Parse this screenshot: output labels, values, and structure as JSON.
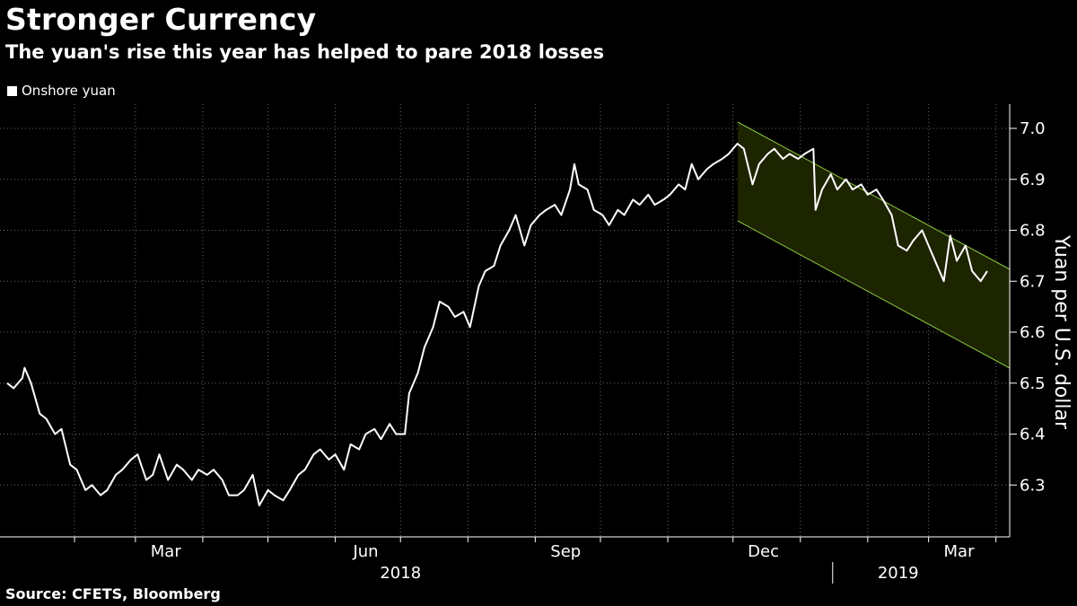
{
  "header": {
    "title": "Stronger Currency",
    "subtitle": "The yuan's rise this year has helped to pare 2018 losses"
  },
  "legend": {
    "label": "Onshore yuan"
  },
  "footer": {
    "source": "Source: CFETS, Bloomberg"
  },
  "colors": {
    "background": "#000000",
    "line": "#ffffff",
    "channel_fill": "#1c2400",
    "channel_edge": "#8cc63f",
    "grid": "#666666"
  },
  "chart_data": {
    "type": "line",
    "title": "Stronger Currency",
    "subtitle": "The yuan's rise this year has helped to pare 2018 losses",
    "ylabel": "Yuan per U.S. dollar",
    "xlabel": "",
    "ylim": [
      6.2,
      7.05
    ],
    "yticks": [
      6.3,
      6.4,
      6.5,
      6.6,
      6.7,
      6.8,
      6.9,
      7.0
    ],
    "ytick_labels": [
      "6.3",
      "6.4",
      "6.5",
      "6.6",
      "6.7",
      "6.8",
      "6.9",
      "7.0"
    ],
    "xlim": [
      "2018-01-01",
      "2019-03-28"
    ],
    "x_month_ticks": [
      "2018-02-01",
      "2018-03-01",
      "2018-04-01",
      "2018-05-01",
      "2018-06-01",
      "2018-07-01",
      "2018-08-01",
      "2018-09-01",
      "2018-10-01",
      "2018-11-01",
      "2018-12-01",
      "2019-01-01",
      "2019-02-01",
      "2019-03-01",
      "2019-04-01"
    ],
    "x_labels": [
      {
        "date": "2018-03-15",
        "label": "Mar"
      },
      {
        "date": "2018-06-15",
        "label": "Jun"
      },
      {
        "date": "2018-09-15",
        "label": "Sep"
      },
      {
        "date": "2018-12-15",
        "label": "Dec"
      },
      {
        "date": "2019-03-15",
        "label": "Mar"
      }
    ],
    "year_labels": [
      {
        "date": "2018-07-01",
        "label": "2018"
      },
      {
        "date": "2019-02-15",
        "label": "2019"
      }
    ],
    "year_divider": "2019-01-01",
    "grid": true,
    "legend": "top-left",
    "series": [
      {
        "name": "Onshore yuan",
        "points": [
          [
            "2018-01-01",
            6.5
          ],
          [
            "2018-01-04",
            6.49
          ],
          [
            "2018-01-08",
            6.51
          ],
          [
            "2018-01-09",
            6.53
          ],
          [
            "2018-01-12",
            6.5
          ],
          [
            "2018-01-16",
            6.44
          ],
          [
            "2018-01-19",
            6.43
          ],
          [
            "2018-01-23",
            6.4
          ],
          [
            "2018-01-26",
            6.41
          ],
          [
            "2018-01-30",
            6.34
          ],
          [
            "2018-02-02",
            6.33
          ],
          [
            "2018-02-06",
            6.29
          ],
          [
            "2018-02-09",
            6.3
          ],
          [
            "2018-02-13",
            6.28
          ],
          [
            "2018-02-16",
            6.29
          ],
          [
            "2018-02-20",
            6.32
          ],
          [
            "2018-02-23",
            6.33
          ],
          [
            "2018-02-27",
            6.35
          ],
          [
            "2018-03-02",
            6.36
          ],
          [
            "2018-03-06",
            6.31
          ],
          [
            "2018-03-09",
            6.32
          ],
          [
            "2018-03-12",
            6.36
          ],
          [
            "2018-03-16",
            6.31
          ],
          [
            "2018-03-20",
            6.34
          ],
          [
            "2018-03-23",
            6.33
          ],
          [
            "2018-03-27",
            6.31
          ],
          [
            "2018-03-30",
            6.33
          ],
          [
            "2018-04-03",
            6.32
          ],
          [
            "2018-04-06",
            6.33
          ],
          [
            "2018-04-10",
            6.31
          ],
          [
            "2018-04-13",
            6.28
          ],
          [
            "2018-04-17",
            6.28
          ],
          [
            "2018-04-20",
            6.29
          ],
          [
            "2018-04-24",
            6.32
          ],
          [
            "2018-04-27",
            6.26
          ],
          [
            "2018-05-01",
            6.29
          ],
          [
            "2018-05-04",
            6.28
          ],
          [
            "2018-05-08",
            6.27
          ],
          [
            "2018-05-11",
            6.29
          ],
          [
            "2018-05-15",
            6.32
          ],
          [
            "2018-05-18",
            6.33
          ],
          [
            "2018-05-22",
            6.36
          ],
          [
            "2018-05-25",
            6.37
          ],
          [
            "2018-05-29",
            6.35
          ],
          [
            "2018-06-01",
            6.36
          ],
          [
            "2018-06-05",
            6.33
          ],
          [
            "2018-06-08",
            6.38
          ],
          [
            "2018-06-12",
            6.37
          ],
          [
            "2018-06-15",
            6.4
          ],
          [
            "2018-06-19",
            6.41
          ],
          [
            "2018-06-22",
            6.39
          ],
          [
            "2018-06-26",
            6.42
          ],
          [
            "2018-06-29",
            6.4
          ],
          [
            "2018-07-03",
            6.4
          ],
          [
            "2018-07-05",
            6.48
          ],
          [
            "2018-07-09",
            6.52
          ],
          [
            "2018-07-12",
            6.57
          ],
          [
            "2018-07-16",
            6.61
          ],
          [
            "2018-07-19",
            6.66
          ],
          [
            "2018-07-23",
            6.65
          ],
          [
            "2018-07-26",
            6.63
          ],
          [
            "2018-07-30",
            6.64
          ],
          [
            "2018-08-02",
            6.61
          ],
          [
            "2018-08-06",
            6.69
          ],
          [
            "2018-08-09",
            6.72
          ],
          [
            "2018-08-13",
            6.73
          ],
          [
            "2018-08-16",
            6.77
          ],
          [
            "2018-08-20",
            6.8
          ],
          [
            "2018-08-23",
            6.83
          ],
          [
            "2018-08-27",
            6.77
          ],
          [
            "2018-08-30",
            6.81
          ],
          [
            "2018-09-03",
            6.83
          ],
          [
            "2018-09-06",
            6.84
          ],
          [
            "2018-09-10",
            6.85
          ],
          [
            "2018-09-13",
            6.83
          ],
          [
            "2018-09-17",
            6.88
          ],
          [
            "2018-09-19",
            6.93
          ],
          [
            "2018-09-21",
            6.89
          ],
          [
            "2018-09-25",
            6.88
          ],
          [
            "2018-09-28",
            6.84
          ],
          [
            "2018-10-02",
            6.83
          ],
          [
            "2018-10-05",
            6.81
          ],
          [
            "2018-10-09",
            6.84
          ],
          [
            "2018-10-12",
            6.83
          ],
          [
            "2018-10-16",
            6.86
          ],
          [
            "2018-10-19",
            6.85
          ],
          [
            "2018-10-23",
            6.87
          ],
          [
            "2018-10-26",
            6.85
          ],
          [
            "2018-10-30",
            6.86
          ],
          [
            "2018-11-02",
            6.87
          ],
          [
            "2018-11-06",
            6.89
          ],
          [
            "2018-11-09",
            6.88
          ],
          [
            "2018-11-12",
            6.93
          ],
          [
            "2018-11-15",
            6.9
          ],
          [
            "2018-11-19",
            6.92
          ],
          [
            "2018-11-22",
            6.93
          ],
          [
            "2018-11-26",
            6.94
          ],
          [
            "2018-11-29",
            6.95
          ],
          [
            "2018-12-03",
            6.97
          ],
          [
            "2018-12-06",
            6.96
          ],
          [
            "2018-12-10",
            6.89
          ],
          [
            "2018-12-13",
            6.93
          ],
          [
            "2018-12-17",
            6.95
          ],
          [
            "2018-12-20",
            6.96
          ],
          [
            "2018-12-24",
            6.94
          ],
          [
            "2018-12-27",
            6.95
          ],
          [
            "2018-12-31",
            6.94
          ],
          [
            "2019-01-03",
            6.95
          ],
          [
            "2019-01-07",
            6.96
          ],
          [
            "2019-01-08",
            6.84
          ],
          [
            "2019-01-11",
            6.88
          ],
          [
            "2019-01-15",
            6.91
          ],
          [
            "2019-01-18",
            6.88
          ],
          [
            "2019-01-22",
            6.9
          ],
          [
            "2019-01-25",
            6.88
          ],
          [
            "2019-01-29",
            6.89
          ],
          [
            "2019-02-01",
            6.87
          ],
          [
            "2019-02-05",
            6.88
          ],
          [
            "2019-02-08",
            6.86
          ],
          [
            "2019-02-12",
            6.83
          ],
          [
            "2019-02-15",
            6.77
          ],
          [
            "2019-02-19",
            6.76
          ],
          [
            "2019-02-22",
            6.78
          ],
          [
            "2019-02-26",
            6.8
          ],
          [
            "2019-03-01",
            6.77
          ],
          [
            "2019-03-05",
            6.73
          ],
          [
            "2019-03-08",
            6.7
          ],
          [
            "2019-03-11",
            6.79
          ],
          [
            "2019-03-14",
            6.74
          ],
          [
            "2019-03-18",
            6.77
          ],
          [
            "2019-03-21",
            6.72
          ],
          [
            "2019-03-25",
            6.7
          ],
          [
            "2019-03-28",
            6.72
          ]
        ]
      }
    ]
  }
}
